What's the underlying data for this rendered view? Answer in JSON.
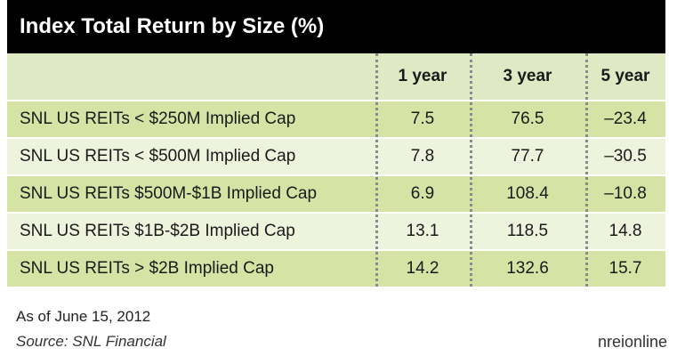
{
  "chart_data": {
    "type": "table",
    "title": "Index Total Return by Size (%)",
    "columns": [
      "",
      "1 year",
      "3 year",
      "5 year"
    ],
    "rows": [
      {
        "label": "SNL US REITs < $250M Implied Cap",
        "values": [
          "7.5",
          "76.5",
          "–23.4"
        ]
      },
      {
        "label": "SNL US REITs < $500M Implied Cap",
        "values": [
          "7.8",
          "77.7",
          "–30.5"
        ]
      },
      {
        "label": "SNL US REITs $500M-$1B Implied Cap",
        "values": [
          "6.9",
          "108.4",
          "–10.8"
        ]
      },
      {
        "label": "SNL US REITs $1B-$2B Implied Cap",
        "values": [
          "13.1",
          "118.5",
          "14.8"
        ]
      },
      {
        "label": "SNL US REITs > $2B Implied Cap",
        "values": [
          "14.2",
          "132.6",
          "15.7"
        ]
      }
    ]
  },
  "footer": {
    "date_note": "As of June 15, 2012",
    "source": "Source: SNL Financial",
    "brand": "nreionline"
  },
  "colors": {
    "title_bg": "#000000",
    "header_bg": "#dfe9c3",
    "row_shade": "#d5e4a5",
    "row_plain": "#eef3de"
  }
}
